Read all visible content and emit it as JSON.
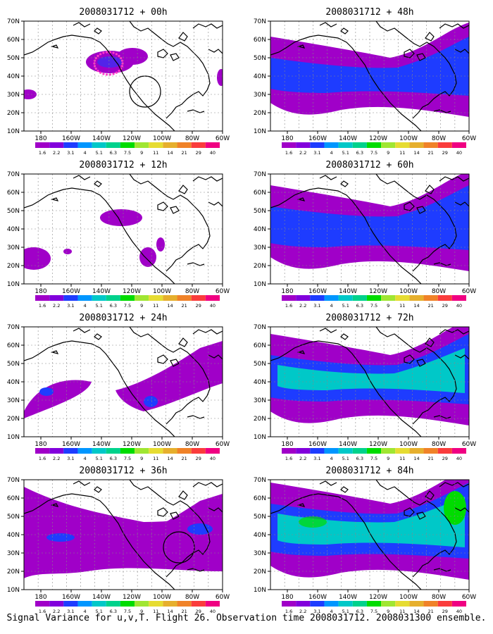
{
  "figure": {
    "caption": "Signal Variance for u,v,T. Flight 26. Observation time 2008031712. 2008031300 ensemble.",
    "lon_labels": [
      "180",
      "160W",
      "140W",
      "120W",
      "100W",
      "80W",
      "60W"
    ],
    "lat_labels": [
      "10N",
      "20N",
      "30N",
      "40N",
      "50N",
      "60N",
      "70N"
    ],
    "colorbar": {
      "labels": [
        "1.6",
        "2.2",
        "3.1",
        "4",
        "5.1",
        "6.3",
        "7.5",
        "9",
        "11",
        "14",
        "21",
        "29",
        "40"
      ],
      "colors": [
        "#a000c8",
        "#8200dc",
        "#1e3cff",
        "#0096ff",
        "#00c8c8",
        "#00d28c",
        "#00dc00",
        "#a0e632",
        "#e6dc32",
        "#e6af2d",
        "#f08228",
        "#fa3c3c",
        "#f00082"
      ]
    },
    "panels": [
      {
        "title": "2008031712 + 00h",
        "level": 0
      },
      {
        "title": "2008031712 + 48h",
        "level": 3
      },
      {
        "title": "2008031712 + 12h",
        "level": 1
      },
      {
        "title": "2008031712 + 60h",
        "level": 4
      },
      {
        "title": "2008031712 + 24h",
        "level": 2
      },
      {
        "title": "2008031712 + 72h",
        "level": 5
      },
      {
        "title": "2008031712 + 36h",
        "level": 2
      },
      {
        "title": "2008031712 + 84h",
        "level": 6
      }
    ],
    "colors": {
      "land_outline": "#000000",
      "background": "#ffffff",
      "obs_dots": "#ff3cc8"
    }
  }
}
